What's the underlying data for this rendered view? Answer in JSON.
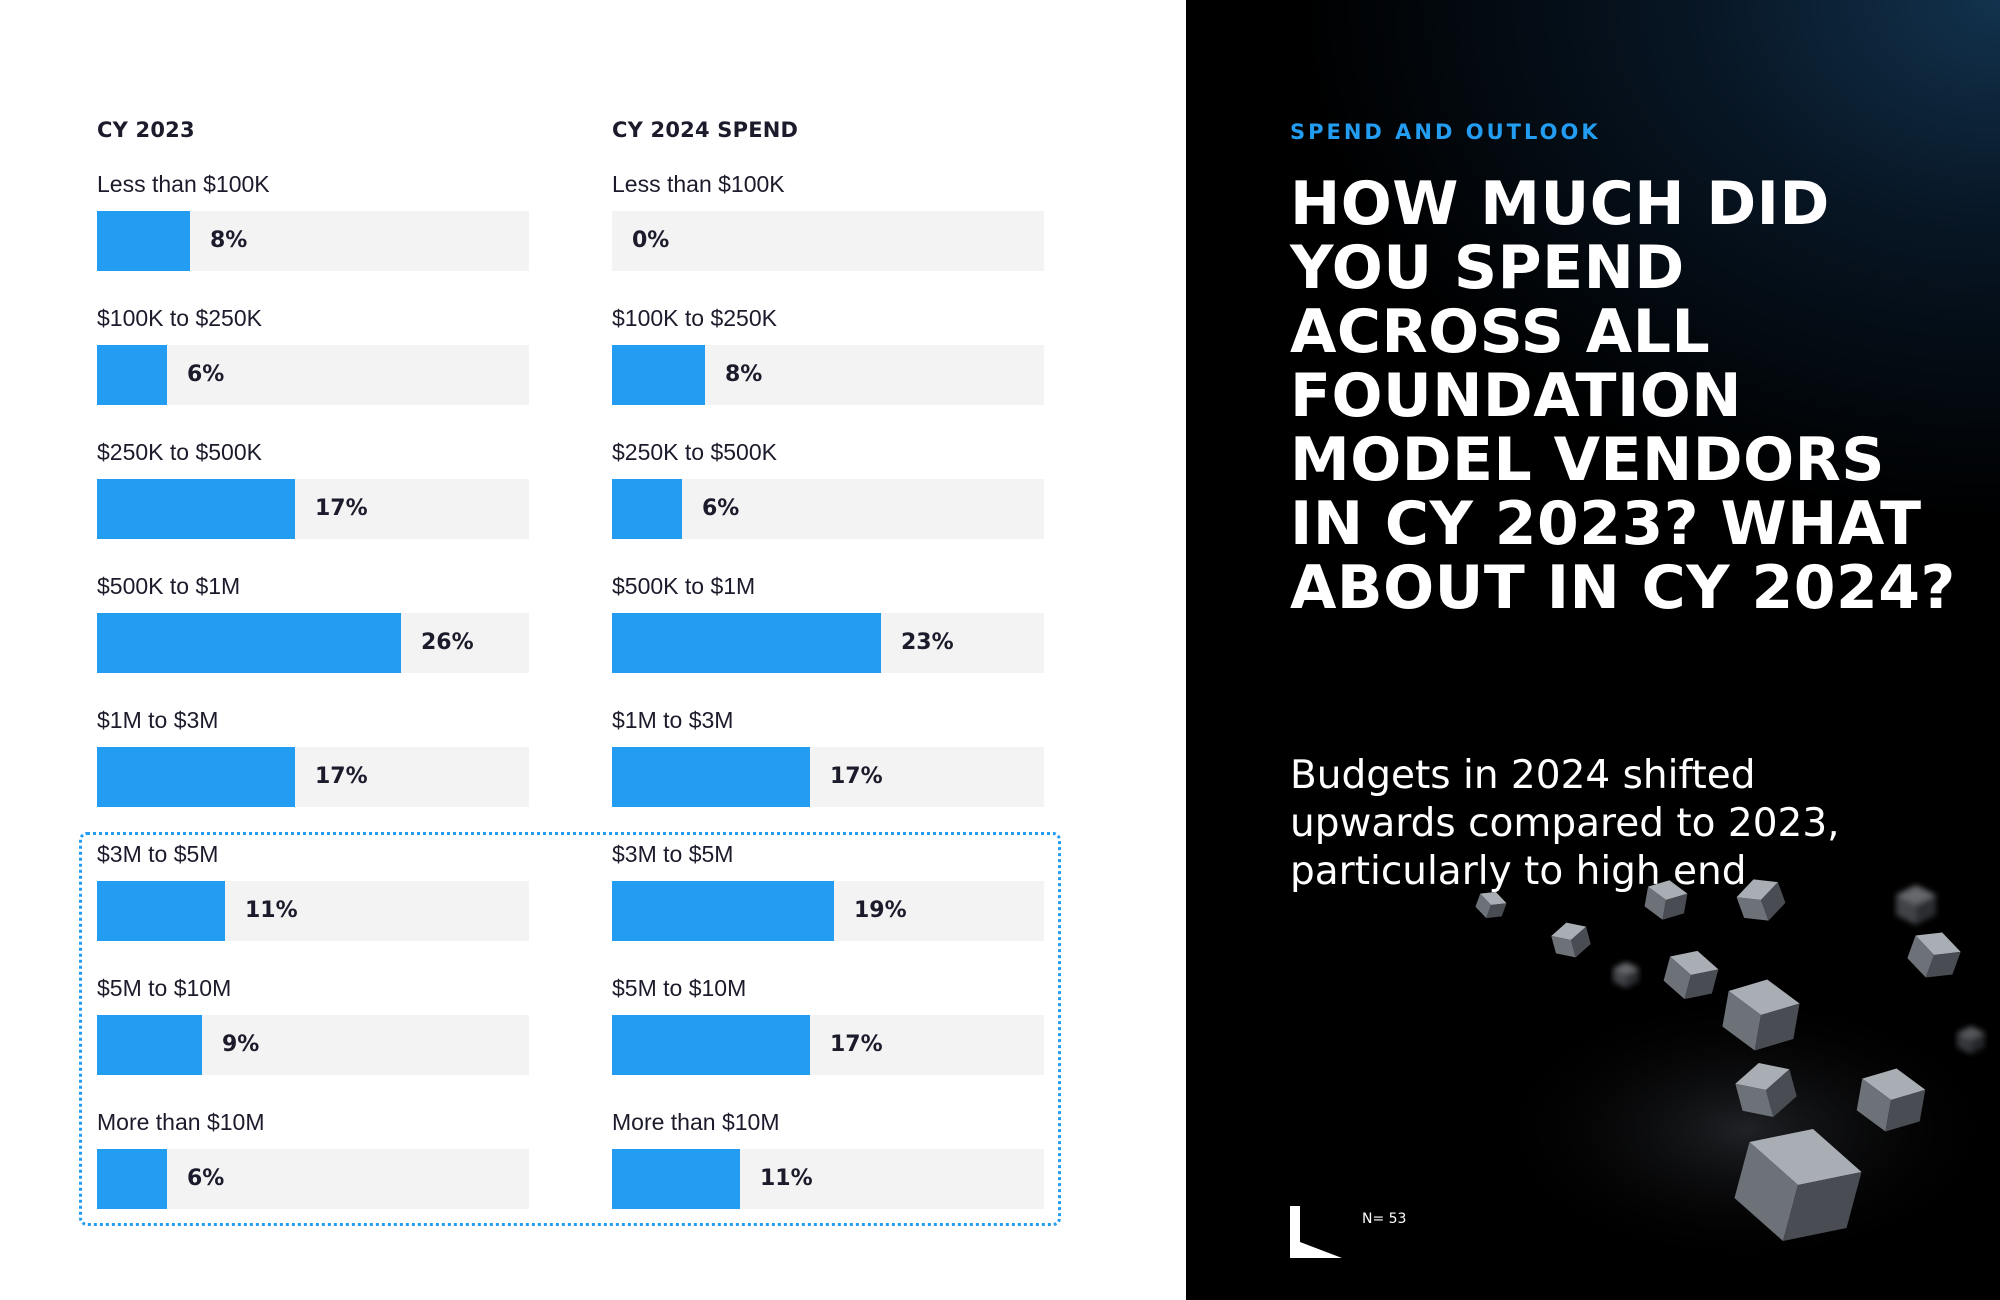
{
  "chart_data": [
    {
      "type": "bar",
      "title": "CY 2023",
      "categories": [
        "Less than $100K",
        "$100K to $250K",
        "$250K to $500K",
        "$500K to $1M",
        "$1M to $3M",
        "$3M to $5M",
        "$5M to $10M",
        "More than $10M"
      ],
      "values": [
        8,
        6,
        17,
        26,
        17,
        11,
        9,
        6
      ],
      "value_labels": [
        "8%",
        "6%",
        "17%",
        "26%",
        "17%",
        "11%",
        "9%",
        "6%"
      ],
      "xlim": [
        0,
        37
      ],
      "orientation": "horizontal",
      "grid": false
    },
    {
      "type": "bar",
      "title": "CY 2024 SPEND",
      "categories": [
        "Less than $100K",
        "$100K to $250K",
        "$250K to $500K",
        "$500K to $1M",
        "$1M to $3M",
        "$3M to $5M",
        "$5M to $10M",
        "More than $10M"
      ],
      "values": [
        0,
        8,
        6,
        23,
        17,
        19,
        17,
        11
      ],
      "value_labels": [
        "0%",
        "8%",
        "6%",
        "23%",
        "17%",
        "19%",
        "17%",
        "11%"
      ],
      "xlim": [
        0,
        37
      ],
      "orientation": "horizontal",
      "grid": false
    }
  ],
  "panel": {
    "section_label": "SPEND AND OUTLOOK",
    "headline": "HOW MUCH DID YOU SPEND ACROSS ALL FOUNDATION MODEL VENDORS IN CY 2023? WHAT ABOUT IN CY 2024?",
    "subhead": "Budgets in 2024 shifted upwards compared to 2023, particularly to high end",
    "footnote": "N= 53",
    "logo_icon": "l-shape-logo-icon"
  },
  "colors": {
    "bar": "#239df2",
    "track": "#f3f3f4",
    "accent": "#239df2",
    "panel_bg": "#000000",
    "text_dark": "#1b1b2b"
  }
}
